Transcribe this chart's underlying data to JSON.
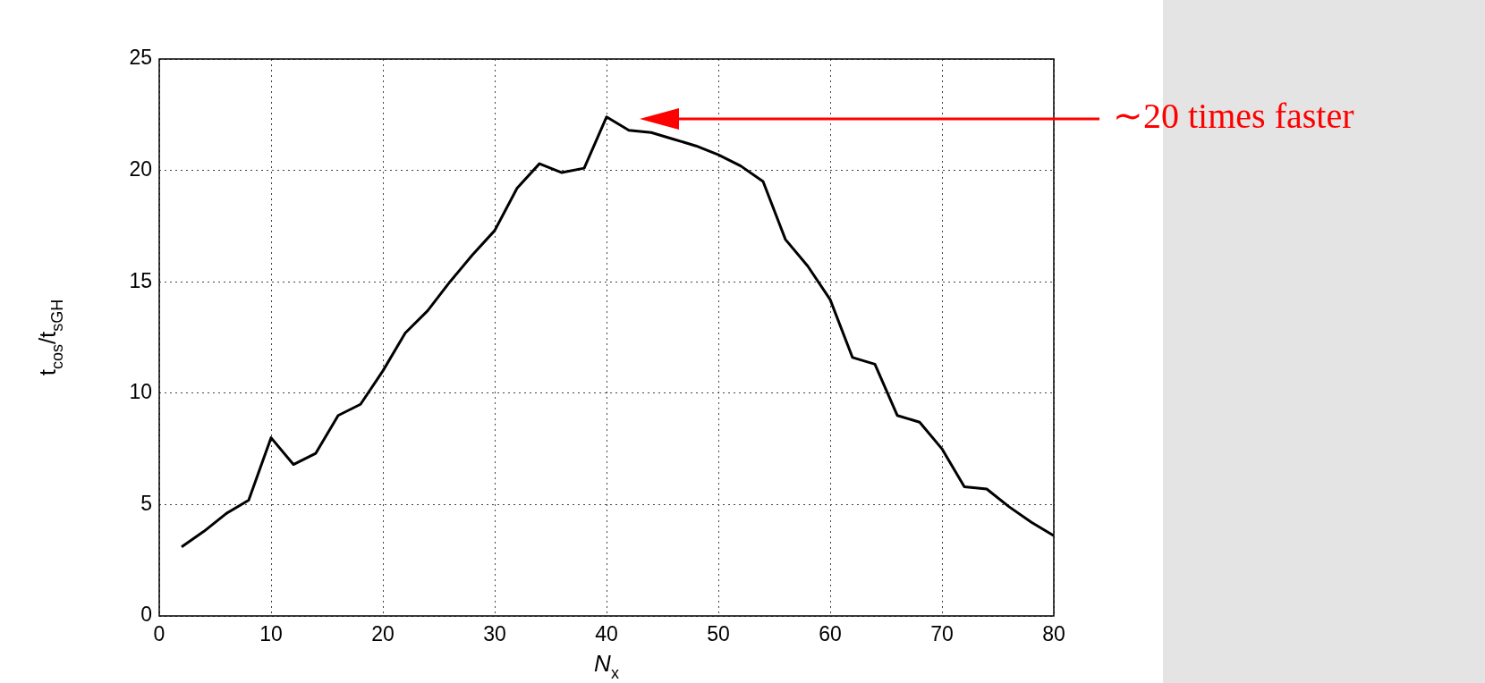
{
  "chart_data": {
    "type": "line",
    "xlabel": "N$_{x}$",
    "ylabel": "t$_{cos}$/t$_{sGH}$",
    "x": [
      2,
      4,
      6,
      8,
      10,
      12,
      14,
      16,
      18,
      20,
      22,
      24,
      26,
      28,
      30,
      32,
      34,
      36,
      38,
      40,
      42,
      44,
      46,
      48,
      50,
      52,
      54,
      56,
      58,
      60,
      62,
      64,
      66,
      68,
      70,
      72,
      74,
      76,
      78,
      80
    ],
    "series": [
      {
        "color": "#000000",
        "values": [
          3.1,
          3.8,
          4.6,
          5.2,
          8.0,
          6.8,
          7.3,
          9.0,
          9.5,
          11.0,
          12.7,
          13.7,
          15.0,
          16.2,
          17.3,
          19.2,
          20.3,
          19.9,
          20.1,
          22.4,
          21.8,
          21.7,
          21.4,
          21.1,
          20.7,
          20.2,
          19.5,
          16.9,
          15.7,
          14.2,
          11.6,
          11.3,
          9.0,
          8.7,
          7.5,
          5.8,
          5.7,
          4.9,
          4.2,
          3.6
        ]
      }
    ],
    "xlim": [
      0,
      80
    ],
    "xticks": [
      0,
      10,
      20,
      30,
      40,
      50,
      60,
      70,
      80
    ],
    "ylim": [
      0,
      25
    ],
    "yticks": [
      0,
      5,
      10,
      15,
      20,
      25
    ],
    "grid": true,
    "marker": "none",
    "line_style": "solid",
    "annotations": [
      "∼20 times faster"
    ]
  }
}
